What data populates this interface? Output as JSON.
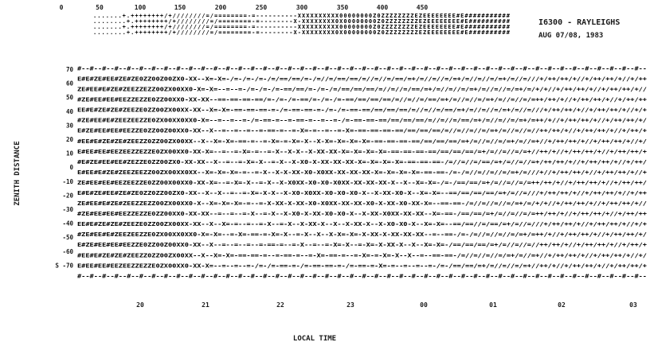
{
  "chart_data": {
    "type": "heatmap",
    "title": "I6300 - RAYLEIGHS",
    "subtitle": "AUG 07/08, 1983",
    "xlabel": "LOCAL TIME",
    "ylabel": "ZENITH DISTANCE",
    "x_ticks": [
      "20",
      "21",
      "22",
      "23",
      "00",
      "01",
      "02",
      "03"
    ],
    "y_ticks": [
      "70",
      "60",
      "50",
      "40",
      "30",
      "20",
      "10",
      "0",
      "-10",
      "-20",
      "-30",
      "-40",
      "-50",
      "-60",
      "S -70"
    ],
    "legend_scale": {
      "tick_labels": [
        "0",
        "50",
        "100",
        "150",
        "200",
        "250",
        "300",
        "350",
        "400",
        "450"
      ],
      "symbols": [
        ".",
        "+",
        "/",
        "=",
        "-",
        "X",
        "0",
        "Z",
        "E",
        "#"
      ]
    },
    "symbol_ramp": [
      " ",
      ".",
      "+",
      "/",
      "=",
      "-",
      "X",
      "0",
      "Z",
      "E",
      "#"
    ]
  }
}
